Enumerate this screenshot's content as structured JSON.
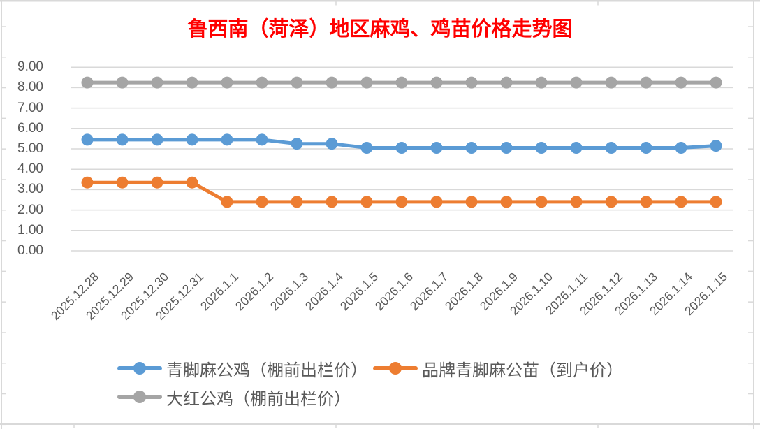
{
  "title": {
    "text": "鲁西南（菏泽）地区麻鸡、鸡苗价格走势图",
    "color": "#FF0000"
  },
  "chart_data": {
    "type": "line",
    "title": "鲁西南（菏泽）地区麻鸡、鸡苗价格走势图",
    "categories": [
      "2025.12.28",
      "2025.12.29",
      "2025.12.30",
      "2025.12.31",
      "2026.1.1",
      "2026.1.2",
      "2026.1.3",
      "2026.1.4",
      "2026.1.5",
      "2026.1.6",
      "2026.1.7",
      "2026.1.8",
      "2026.1.9",
      "2026.1.10",
      "2026.1.11",
      "2026.1.12",
      "2026.1.13",
      "2026.1.14",
      "2026.1.15"
    ],
    "series": [
      {
        "name": "青脚麻公鸡（棚前出栏价）",
        "color": "#5B9BD5",
        "values": [
          5.45,
          5.45,
          5.45,
          5.45,
          5.45,
          5.45,
          5.25,
          5.25,
          5.05,
          5.05,
          5.05,
          5.05,
          5.05,
          5.05,
          5.05,
          5.05,
          5.05,
          5.05,
          5.15
        ]
      },
      {
        "name": "品牌青脚麻公苗（到户价）",
        "color": "#ED7D31",
        "values": [
          3.35,
          3.35,
          3.35,
          3.35,
          2.4,
          2.4,
          2.4,
          2.4,
          2.4,
          2.4,
          2.4,
          2.4,
          2.4,
          2.4,
          2.4,
          2.4,
          2.4,
          2.4,
          2.4
        ]
      },
      {
        "name": "大红公鸡（棚前出栏价）",
        "color": "#A5A5A5",
        "values": [
          8.25,
          8.25,
          8.25,
          8.25,
          8.25,
          8.25,
          8.25,
          8.25,
          8.25,
          8.25,
          8.25,
          8.25,
          8.25,
          8.25,
          8.25,
          8.25,
          8.25,
          8.25,
          8.25
        ]
      }
    ],
    "xlabel": "",
    "ylabel": "",
    "ylim": [
      0,
      9
    ],
    "ytick_step": 1.0,
    "ytick_labels": [
      "0.00",
      "1.00",
      "2.00",
      "3.00",
      "4.00",
      "5.00",
      "6.00",
      "7.00",
      "8.00",
      "9.00"
    ],
    "grid": true,
    "legend_position": "bottom",
    "marker": "circle"
  },
  "colors": {
    "gridline": "#D9D9D9",
    "frame": "#D9D9D9",
    "axis_text": "#595959",
    "title_text": "#FF0000"
  }
}
